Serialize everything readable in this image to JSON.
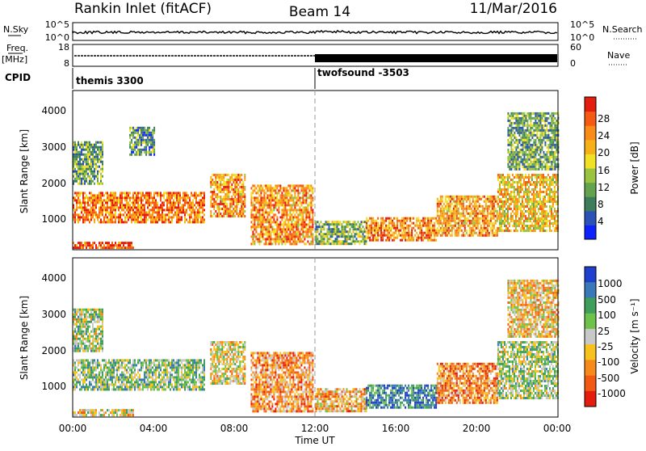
{
  "header": {
    "station": "Rankin Inlet (fitACF)",
    "beam": "Beam 14",
    "date": "11/Mar/2016"
  },
  "strips": {
    "nsky": {
      "left_label": "N.Sky",
      "left_ticks": [
        "10^5",
        "10^0"
      ],
      "right_ticks": [
        "10^5",
        "10^0"
      ],
      "right_label": "N.Search"
    },
    "freq": {
      "left_label_top": "Freq.",
      "left_label_unit": "[MHz]",
      "left_ticks": [
        "18",
        "8"
      ],
      "right_ticks": [
        "60",
        "0"
      ],
      "right_label": "Nave"
    },
    "cpid": {
      "label": "CPID",
      "segments": [
        {
          "name": "themis 3300",
          "start_hour": 0
        },
        {
          "name": "twofsound -3503",
          "start_hour": 12
        }
      ]
    }
  },
  "chart_data": [
    {
      "type": "heatmap",
      "name": "power",
      "x_axis": "time_ut_hours",
      "xlim": [
        0,
        24
      ],
      "ylabel": "Slant Range [km]",
      "ylim": [
        200,
        4600
      ],
      "yticks": [
        "1000",
        "2000",
        "3000",
        "4000"
      ],
      "colorbar": {
        "label": "Power [dB]",
        "ticks": [
          "4",
          "8",
          "12",
          "16",
          "20",
          "24",
          "28"
        ],
        "range": [
          0,
          30
        ],
        "colors": [
          "#0d22ff",
          "#2c52b8",
          "#3e7d5a",
          "#64a34e",
          "#9ac33f",
          "#f2e024",
          "#f7b017",
          "#f98b18",
          "#f45a12",
          "#e51d0e"
        ]
      },
      "regions": [
        {
          "t0": 0.0,
          "t1": 6.5,
          "r0": 950,
          "r1": 1800,
          "level": 0.78
        },
        {
          "t0": 0.0,
          "t1": 3.0,
          "r0": 230,
          "r1": 420,
          "level": 0.88
        },
        {
          "t0": 0.0,
          "t1": 1.5,
          "r0": 2000,
          "r1": 3200,
          "level": 0.35
        },
        {
          "t0": 2.8,
          "t1": 4.0,
          "r0": 2800,
          "r1": 3600,
          "level": 0.3
        },
        {
          "t0": 6.8,
          "t1": 8.5,
          "r0": 1100,
          "r1": 2300,
          "level": 0.72
        },
        {
          "t0": 8.8,
          "t1": 11.9,
          "r0": 350,
          "r1": 2000,
          "level": 0.72
        },
        {
          "t0": 12.0,
          "t1": 14.5,
          "r0": 350,
          "r1": 1000,
          "level": 0.4
        },
        {
          "t0": 14.5,
          "t1": 18.0,
          "r0": 450,
          "r1": 1100,
          "level": 0.75
        },
        {
          "t0": 18.0,
          "t1": 21.0,
          "r0": 600,
          "r1": 1700,
          "level": 0.7
        },
        {
          "t0": 21.0,
          "t1": 24.0,
          "r0": 700,
          "r1": 2300,
          "level": 0.62
        },
        {
          "t0": 21.5,
          "t1": 24.0,
          "r0": 2400,
          "r1": 4000,
          "level": 0.35
        }
      ]
    },
    {
      "type": "heatmap",
      "name": "velocity",
      "x_axis": "time_ut_hours",
      "xlim": [
        0,
        24
      ],
      "xlabel": "Time UT",
      "xticks": [
        "00:00",
        "04:00",
        "08:00",
        "12:00",
        "16:00",
        "20:00",
        "00:00"
      ],
      "ylabel": "Slant Range [km]",
      "ylim": [
        200,
        4600
      ],
      "yticks": [
        "1000",
        "2000",
        "3000",
        "4000"
      ],
      "colorbar": {
        "label": "Velocity [m s⁻¹]",
        "ticks": [
          "1000",
          "500",
          "100",
          "25",
          "-25",
          "-100",
          "-500",
          "-1000"
        ],
        "colors": [
          "#1f3fcf",
          "#3a78b7",
          "#3e9e5a",
          "#6ec14a",
          "#c8c8c8",
          "#f7c21b",
          "#f88a1b",
          "#f25a14",
          "#e51d0e"
        ]
      },
      "regions": [
        {
          "t0": 0.0,
          "t1": 6.5,
          "r0": 950,
          "r1": 1800,
          "level": 0.4
        },
        {
          "t0": 0.0,
          "t1": 3.0,
          "r0": 230,
          "r1": 420,
          "level": 0.55
        },
        {
          "t0": 0.0,
          "t1": 1.5,
          "r0": 2000,
          "r1": 3200,
          "level": 0.45
        },
        {
          "t0": 6.8,
          "t1": 8.5,
          "r0": 1100,
          "r1": 2300,
          "level": 0.55
        },
        {
          "t0": 8.8,
          "t1": 11.9,
          "r0": 350,
          "r1": 2000,
          "level": 0.7
        },
        {
          "t0": 12.0,
          "t1": 14.5,
          "r0": 350,
          "r1": 1000,
          "level": 0.65
        },
        {
          "t0": 14.5,
          "t1": 18.0,
          "r0": 450,
          "r1": 1100,
          "level": 0.2
        },
        {
          "t0": 18.0,
          "t1": 21.0,
          "r0": 600,
          "r1": 1700,
          "level": 0.75
        },
        {
          "t0": 21.0,
          "t1": 24.0,
          "r0": 700,
          "r1": 2300,
          "level": 0.45
        },
        {
          "t0": 21.5,
          "t1": 24.0,
          "r0": 2400,
          "r1": 4000,
          "level": 0.6
        }
      ]
    }
  ]
}
